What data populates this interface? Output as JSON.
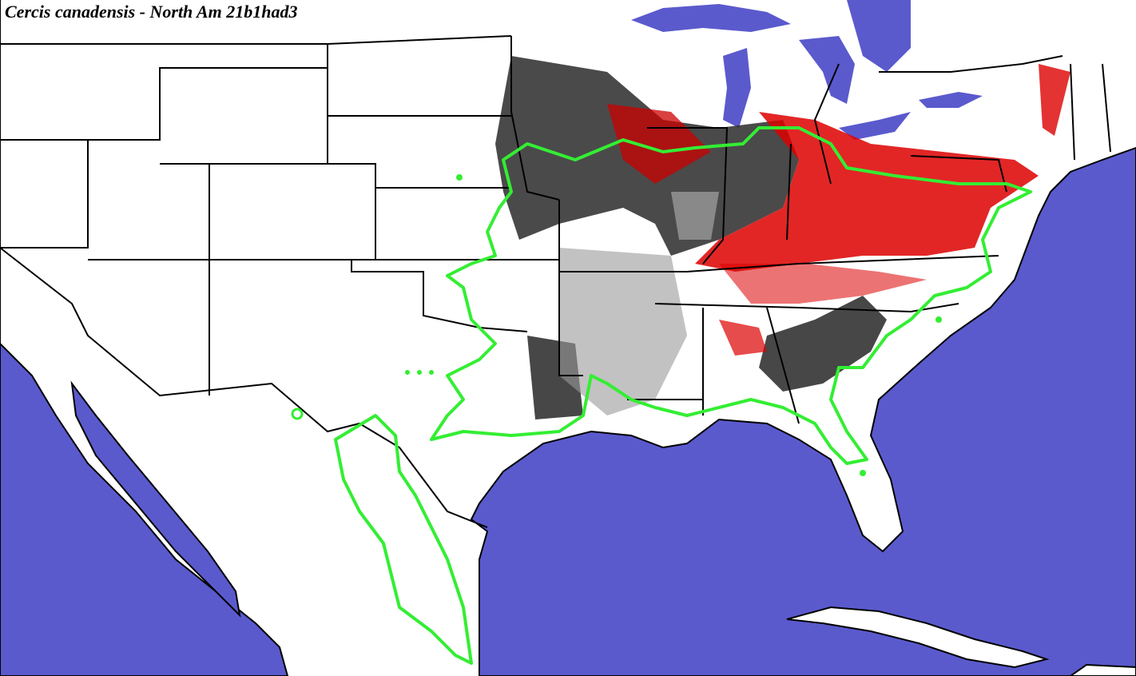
{
  "header": {
    "title": "Cercis canadensis - North Am 21b1had3"
  }
}
